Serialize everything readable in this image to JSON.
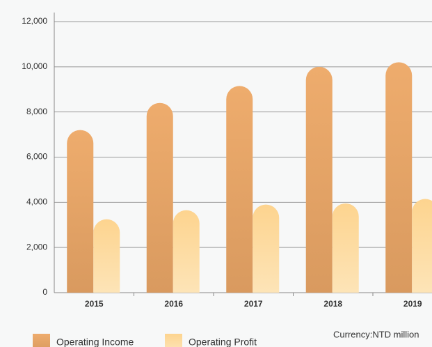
{
  "chart_data": {
    "type": "bar",
    "categories": [
      "2015",
      "2016",
      "2017",
      "2018",
      "2019"
    ],
    "series": [
      {
        "name": "Operating Income",
        "color": "#e6a466",
        "values": [
          7200,
          8400,
          9150,
          10000,
          10200
        ]
      },
      {
        "name": "Operating Profit",
        "color": "#fdd999",
        "values": [
          3250,
          3650,
          3900,
          3950,
          4150
        ]
      }
    ],
    "ylim": [
      0,
      12000
    ],
    "yticks": [
      0,
      {
        "value": 2000,
        "label": "2,000"
      },
      {
        "value": 4000,
        "label": "4,000"
      },
      {
        "value": 6000,
        "label": "6,000"
      },
      {
        "value": 8000,
        "label": "8,000"
      },
      {
        "value": 10000,
        "label": "10,000"
      },
      {
        "value": 12000,
        "label": "12,000"
      }
    ],
    "grid": true,
    "annotation": "Currency:NTD million",
    "legend": "bottom"
  }
}
